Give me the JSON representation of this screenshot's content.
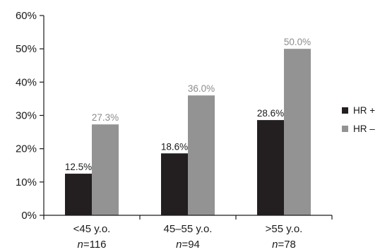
{
  "chart_data": {
    "type": "bar",
    "categories": [
      {
        "label": "<45 y.o.",
        "n_prefix": "n",
        "n_suffix": "=116"
      },
      {
        "label": "45–55 y.o.",
        "n_prefix": "n",
        "n_suffix": "=94"
      },
      {
        "label": ">55 y.o.",
        "n_prefix": "n",
        "n_suffix": "=78"
      }
    ],
    "series": [
      {
        "name": "HR +",
        "color": "#231f20",
        "label_color": "#1a1a1a",
        "values": [
          12.5,
          18.6,
          28.6
        ],
        "data_labels": [
          "12.5%",
          "18.6%",
          "28.6%"
        ]
      },
      {
        "name": "HR –",
        "color": "#939393",
        "label_color": "#8c8c8c",
        "values": [
          27.3,
          36.0,
          50.0
        ],
        "data_labels": [
          "27.3%",
          "36.0%",
          "50.0%"
        ]
      }
    ],
    "ylim": [
      0,
      60
    ],
    "yticks": [
      0,
      10,
      20,
      30,
      40,
      50,
      60
    ],
    "ytick_labels": [
      "0%",
      "10%",
      "20%",
      "30%",
      "40%",
      "50%",
      "60%"
    ],
    "grid": false,
    "legend_position": "right"
  }
}
